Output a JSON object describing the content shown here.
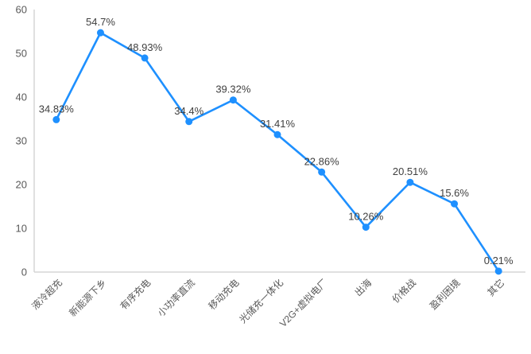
{
  "chart_data": {
    "type": "line",
    "title": "",
    "xlabel": "",
    "ylabel": "",
    "categories": [
      "液冷超充",
      "新能源下乡",
      "有序充电",
      "小功率直流",
      "移动充电",
      "光储充一体化",
      "V2G+虚拟电厂",
      "出海",
      "价格战",
      "盈利困境",
      "其它"
    ],
    "values": [
      34.83,
      54.7,
      48.93,
      34.4,
      39.32,
      31.41,
      22.86,
      10.26,
      20.51,
      15.6,
      0.21
    ],
    "data_labels": [
      "34.83%",
      "54.7%",
      "48.93%",
      "34.4%",
      "39.32%",
      "31.41%",
      "22.86%",
      "10.26%",
      "20.51%",
      "15.6%",
      "0.21%"
    ],
    "y_ticks": [
      0,
      10,
      20,
      30,
      40,
      50,
      60
    ],
    "ylim": [
      0,
      60
    ],
    "grid": false,
    "legend": "none",
    "x_label_rotation_deg": -45,
    "colors": {
      "line": "#1E90FF",
      "marker": "#1E90FF",
      "data_label_text": "#404040",
      "axis_text": "#595959",
      "axis_line": "#D6D6D6",
      "background": "#FFFFFF"
    }
  }
}
